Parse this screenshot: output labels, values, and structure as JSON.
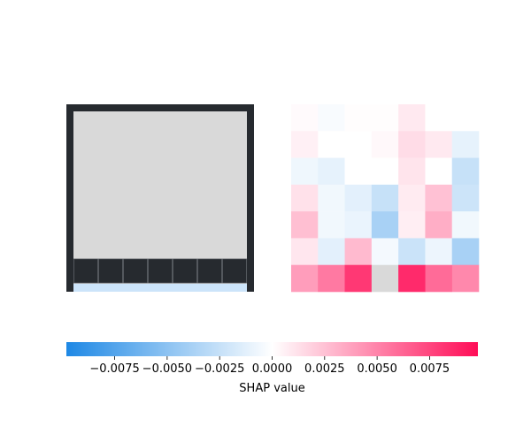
{
  "chart_data": [
    {
      "type": "heatmap",
      "panel": "input",
      "rows": 7,
      "cols": 7,
      "background_color": "#d9d9d9",
      "border_color": "#262a2f",
      "mask_row_color": "#262a2f",
      "bottom_row_color": "#cce4fa"
    },
    {
      "type": "heatmap",
      "panel": "shap",
      "rows": 7,
      "cols": 7,
      "values": [
        [
          0.0002,
          -0.0003,
          0.0001,
          0.0001,
          0.0009,
          0.0,
          0.0
        ],
        [
          0.0006,
          0.0,
          0.0,
          0.0003,
          0.0014,
          0.0009,
          -0.0011
        ],
        [
          -0.0007,
          -0.0011,
          0.0,
          0.0,
          0.0011,
          0.0,
          -0.0025
        ],
        [
          0.0012,
          -0.0006,
          -0.0012,
          -0.0025,
          0.0008,
          0.0025,
          -0.0022
        ],
        [
          0.0026,
          -0.0006,
          -0.0009,
          -0.0038,
          0.0007,
          0.0033,
          -0.0006
        ],
        [
          0.001,
          -0.0012,
          0.0028,
          -0.0005,
          -0.0023,
          -0.0008,
          -0.0038
        ],
        [
          0.0045,
          0.0062,
          0.0092,
          null,
          0.0098,
          0.0068,
          0.0055
        ]
      ],
      "masked_cells": [
        [
          6,
          3
        ]
      ],
      "masked_color": "#d9d9d9",
      "colormap": {
        "negative": "#1e88e5",
        "zero": "#ffffff",
        "positive": "#ff0d57"
      },
      "vmin": -0.0098,
      "vmax": 0.0098
    },
    {
      "type": "colorbar",
      "ticks": [
        -0.0075,
        -0.005,
        -0.0025,
        0.0,
        0.0025,
        0.005,
        0.0075
      ],
      "tick_labels": [
        "−0.0075",
        "−0.0050",
        "−0.0025",
        "0.0000",
        "0.0025",
        "0.0050",
        "0.0075"
      ],
      "xlabel": "SHAP value",
      "vmin": -0.0098,
      "vmax": 0.0098
    }
  ]
}
